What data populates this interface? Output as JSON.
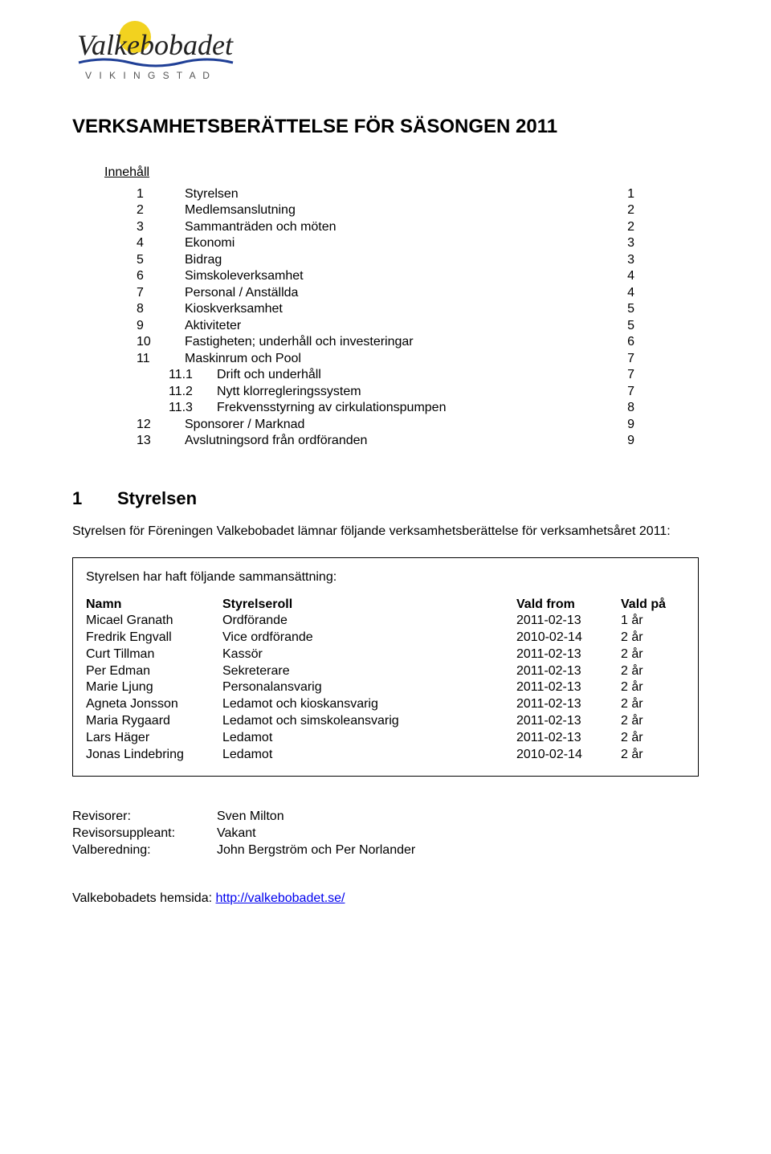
{
  "logo": {
    "name_text": "Valkebobadet",
    "subtitle": "V I K I N G S T A D",
    "sun_color": "#f2d21f",
    "text_color": "#222222",
    "wave_color": "#1f3f96",
    "subtitle_color": "#555555"
  },
  "title": "VERKSAMHETSBERÄTTELSE FÖR SÄSONGEN 2011",
  "toc_heading": "Innehåll",
  "toc": [
    {
      "num": "1",
      "title": "Styrelsen",
      "page": "1",
      "sub": false
    },
    {
      "num": "2",
      "title": "Medlemsanslutning",
      "page": "2",
      "sub": false
    },
    {
      "num": "3",
      "title": "Sammanträden och möten",
      "page": "2",
      "sub": false
    },
    {
      "num": "4",
      "title": "Ekonomi",
      "page": "3",
      "sub": false
    },
    {
      "num": "5",
      "title": "Bidrag",
      "page": "3",
      "sub": false
    },
    {
      "num": "6",
      "title": "Simskoleverksamhet",
      "page": "4",
      "sub": false
    },
    {
      "num": "7",
      "title": "Personal / Anställda",
      "page": "4",
      "sub": false
    },
    {
      "num": "8",
      "title": "Kioskverksamhet",
      "page": "5",
      "sub": false
    },
    {
      "num": "9",
      "title": "Aktiviteter",
      "page": "5",
      "sub": false
    },
    {
      "num": "10",
      "title": "Fastigheten; underhåll och investeringar",
      "page": "6",
      "sub": false
    },
    {
      "num": "11",
      "title": "Maskinrum och Pool",
      "page": "7",
      "sub": false
    },
    {
      "num": "11.1",
      "title": "Drift och underhåll",
      "page": "7",
      "sub": true
    },
    {
      "num": "11.2",
      "title": "Nytt klorregleringssystem",
      "page": "7",
      "sub": true
    },
    {
      "num": "11.3",
      "title": "Frekvensstyrning av cirkulationspumpen",
      "page": "8",
      "sub": true
    },
    {
      "num": "12",
      "title": "Sponsorer / Marknad",
      "page": "9",
      "sub": false
    },
    {
      "num": "13",
      "title": "Avslutningsord från ordföranden",
      "page": "9",
      "sub": false
    }
  ],
  "section1": {
    "num": "1",
    "title": "Styrelsen",
    "intro": "Styrelsen för Föreningen Valkebobadet lämnar följande verksamhetsberättelse för verksamhetsåret 2011:",
    "box_intro": "Styrelsen har haft följande sammansättning:",
    "columns": {
      "name": "Namn",
      "role": "Styrelseroll",
      "from": "Vald from",
      "term": "Vald på"
    },
    "rows": [
      {
        "name": "Micael Granath",
        "role": "Ordförande",
        "from": "2011-02-13",
        "term": "1 år"
      },
      {
        "name": "Fredrik Engvall",
        "role": "Vice ordförande",
        "from": "2010-02-14",
        "term": "2 år"
      },
      {
        "name": "Curt Tillman",
        "role": "Kassör",
        "from": "2011-02-13",
        "term": "2 år"
      },
      {
        "name": "Per Edman",
        "role": "Sekreterare",
        "from": "2011-02-13",
        "term": "2 år"
      },
      {
        "name": "Marie Ljung",
        "role": "Personalansvarig",
        "from": "2011-02-13",
        "term": "2 år"
      },
      {
        "name": "Agneta Jonsson",
        "role": "Ledamot och kioskansvarig",
        "from": "2011-02-13",
        "term": "2 år"
      },
      {
        "name": "Maria Rygaard",
        "role": "Ledamot och simskoleansvarig",
        "from": "2011-02-13",
        "term": "2 år"
      },
      {
        "name": "Lars Häger",
        "role": "Ledamot",
        "from": "2011-02-13",
        "term": "2 år"
      },
      {
        "name": "Jonas Lindebring",
        "role": "Ledamot",
        "from": "2010-02-14",
        "term": "2 år"
      }
    ]
  },
  "extras": [
    {
      "label": "Revisorer:",
      "value": "Sven Milton"
    },
    {
      "label": "Revisorsuppleant:",
      "value": "Vakant"
    },
    {
      "label": "Valberedning:",
      "value": "John Bergström och Per Norlander"
    }
  ],
  "footer": {
    "prefix": "Valkebobadets hemsida: ",
    "link_text": "http://valkebobadet.se/"
  }
}
